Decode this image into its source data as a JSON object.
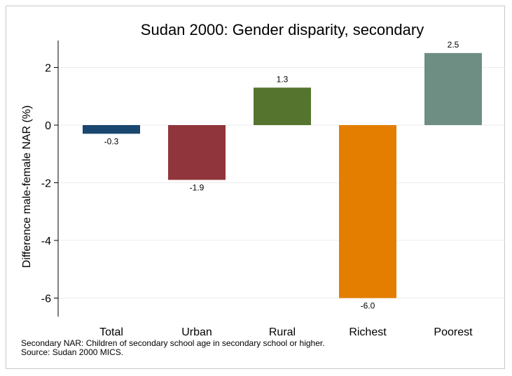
{
  "chart_data": {
    "type": "bar",
    "title": "Sudan 2000: Gender disparity, secondary",
    "ylabel": "Difference male-female NAR (%)",
    "xlabel": "",
    "categories": [
      "Total",
      "Urban",
      "Rural",
      "Richest",
      "Poorest"
    ],
    "values": [
      -0.3,
      -1.9,
      1.3,
      -6.0,
      2.5
    ],
    "value_labels": [
      "-0.3",
      "-1.9",
      "1.3",
      "-6.0",
      "2.5"
    ],
    "colors": [
      "#1a476f",
      "#90353b",
      "#55752f",
      "#e37e00",
      "#6e8e84"
    ],
    "yticks": [
      2,
      0,
      -2,
      -4,
      -6
    ],
    "ytick_labels": [
      "2",
      "0",
      "-2",
      "-4",
      "-6"
    ],
    "ylim": [
      -6.75,
      2.9
    ],
    "grid": true,
    "legend": "none"
  },
  "notes": {
    "line1": "Secondary NAR: Children of secondary school age in secondary school or higher.",
    "line2": "Source: Sudan 2000 MICS."
  }
}
